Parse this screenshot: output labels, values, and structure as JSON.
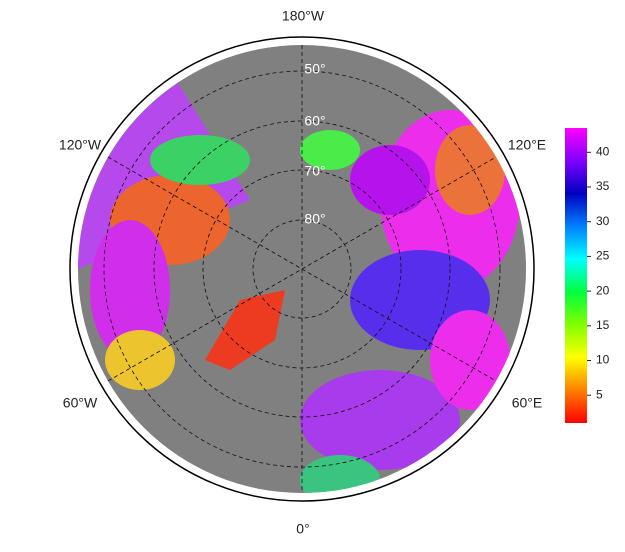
{
  "map": {
    "longitude_labels": [
      "180°W",
      "120°E",
      "60°E",
      "0°",
      "60°W",
      "120°W"
    ],
    "latitude_labels": [
      "50°",
      "60°",
      "70°",
      "80°"
    ],
    "colorbar": {
      "range": [
        1,
        43.5
      ],
      "ticks": [
        5,
        10,
        15,
        20,
        25,
        30,
        35,
        40
      ],
      "colors": [
        "#ff0000",
        "#ff8000",
        "#ffff00",
        "#80ff00",
        "#00ff40",
        "#00ffff",
        "#0080ff",
        "#0000c0",
        "#8000ff",
        "#ff00ff"
      ]
    }
  }
}
